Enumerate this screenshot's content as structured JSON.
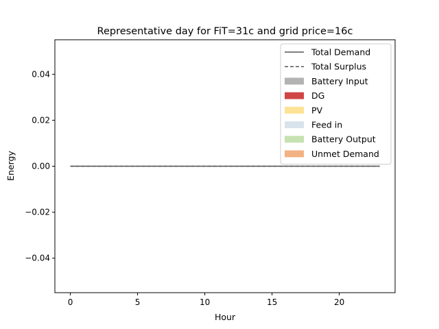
{
  "chart_data": {
    "type": "area",
    "title": "Representative day for FiT=31c and grid price=16c",
    "xlabel": "Hour",
    "ylabel": "Energy",
    "xlim": [
      -1.15,
      24.15
    ],
    "ylim": [
      -0.055,
      0.055
    ],
    "x_ticks": [
      0,
      5,
      10,
      15,
      20
    ],
    "x_tick_labels": [
      "0",
      "5",
      "10",
      "15",
      "20"
    ],
    "y_ticks": [
      0.04,
      0.02,
      0.0,
      -0.02,
      -0.04
    ],
    "y_tick_labels": [
      "0.04",
      "0.02",
      "0.00",
      "−0.02",
      "−0.04"
    ],
    "x": [
      0,
      1,
      2,
      3,
      4,
      5,
      6,
      7,
      8,
      9,
      10,
      11,
      12,
      13,
      14,
      15,
      16,
      17,
      18,
      19,
      20,
      21,
      22,
      23
    ],
    "series": [
      {
        "name": "Total Demand",
        "kind": "line",
        "style": "solid",
        "color": "#555555",
        "values": [
          0,
          0,
          0,
          0,
          0,
          0,
          0,
          0,
          0,
          0,
          0,
          0,
          0,
          0,
          0,
          0,
          0,
          0,
          0,
          0,
          0,
          0,
          0,
          0
        ]
      },
      {
        "name": "Total Surplus",
        "kind": "line",
        "style": "dashed",
        "color": "#555555",
        "values": [
          0,
          0,
          0,
          0,
          0,
          0,
          0,
          0,
          0,
          0,
          0,
          0,
          0,
          0,
          0,
          0,
          0,
          0,
          0,
          0,
          0,
          0,
          0,
          0
        ]
      },
      {
        "name": "Battery Input",
        "kind": "area",
        "color": "#b3b3b3",
        "values": [
          0,
          0,
          0,
          0,
          0,
          0,
          0,
          0,
          0,
          0,
          0,
          0,
          0,
          0,
          0,
          0,
          0,
          0,
          0,
          0,
          0,
          0,
          0,
          0
        ]
      },
      {
        "name": "DG",
        "kind": "area",
        "color": "#d04545",
        "values": [
          0,
          0,
          0,
          0,
          0,
          0,
          0,
          0,
          0,
          0,
          0,
          0,
          0,
          0,
          0,
          0,
          0,
          0,
          0,
          0,
          0,
          0,
          0,
          0
        ]
      },
      {
        "name": "PV",
        "kind": "area",
        "color": "#fde395",
        "values": [
          0,
          0,
          0,
          0,
          0,
          0,
          0,
          0,
          0,
          0,
          0,
          0,
          0,
          0,
          0,
          0,
          0,
          0,
          0,
          0,
          0,
          0,
          0,
          0
        ]
      },
      {
        "name": "Feed in",
        "kind": "area",
        "color": "#d9e3ec",
        "values": [
          0,
          0,
          0,
          0,
          0,
          0,
          0,
          0,
          0,
          0,
          0,
          0,
          0,
          0,
          0,
          0,
          0,
          0,
          0,
          0,
          0,
          0,
          0,
          0
        ]
      },
      {
        "name": "Battery Output",
        "kind": "area",
        "color": "#c6e2b0",
        "values": [
          0,
          0,
          0,
          0,
          0,
          0,
          0,
          0,
          0,
          0,
          0,
          0,
          0,
          0,
          0,
          0,
          0,
          0,
          0,
          0,
          0,
          0,
          0,
          0
        ]
      },
      {
        "name": "Unmet Demand",
        "kind": "area",
        "color": "#f2b283",
        "values": [
          0,
          0,
          0,
          0,
          0,
          0,
          0,
          0,
          0,
          0,
          0,
          0,
          0,
          0,
          0,
          0,
          0,
          0,
          0,
          0,
          0,
          0,
          0,
          0
        ]
      }
    ],
    "legend_position": "top-right",
    "grid": false
  }
}
